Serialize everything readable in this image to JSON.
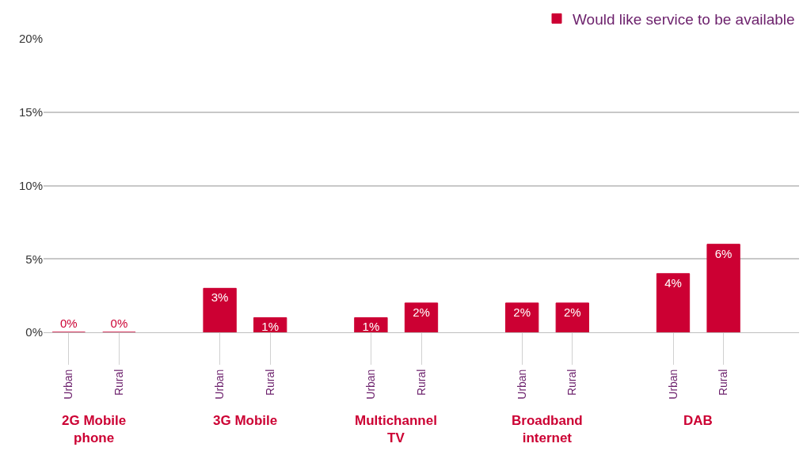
{
  "chart_data": {
    "type": "bar",
    "categories": [
      "Urban",
      "Rural",
      null,
      "Urban",
      "Rural",
      null,
      "Urban",
      "Rural",
      null,
      "Urban",
      "Rural",
      null,
      "Urban",
      "Rural",
      null
    ],
    "series": [
      {
        "name": "Would like service to be available",
        "color": "#cc0033",
        "values": [
          0,
          0,
          null,
          3,
          1,
          null,
          1,
          2,
          null,
          2,
          2,
          null,
          4,
          6,
          null
        ],
        "value_labels": [
          "0%",
          "0%",
          null,
          "3%",
          "1%",
          null,
          "1%",
          "2%",
          null,
          "2%",
          "2%",
          null,
          "4%",
          "6%",
          null
        ]
      }
    ],
    "ylim": [
      0,
      20
    ],
    "yticks": [
      {
        "value": 0,
        "label": "0%"
      },
      {
        "value": 5,
        "label": "5%"
      },
      {
        "value": 10,
        "label": "10%"
      },
      {
        "value": 15,
        "label": "15%"
      },
      {
        "value": 20,
        "label": "20%"
      }
    ],
    "grid": "y",
    "legend": "top right",
    "annotations": [
      "2G Mobile\nphone",
      "3G Mobile",
      "Multichannel\nTV",
      "Broadband\ninternet",
      "DAB"
    ]
  }
}
